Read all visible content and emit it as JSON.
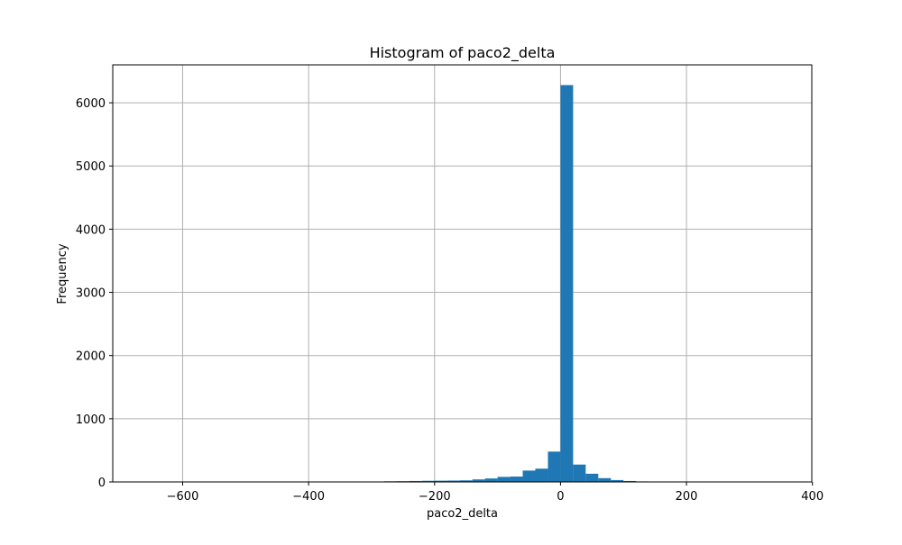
{
  "chart_data": {
    "type": "bar",
    "title": "Histogram of paco2_delta",
    "xlabel": "paco2_delta",
    "ylabel": "Frequency",
    "xlim": [
      -711,
      399
    ],
    "ylim": [
      0,
      6600
    ],
    "xticks": [
      -600,
      -400,
      -200,
      0,
      200,
      400
    ],
    "xtick_labels": [
      "−600",
      "−400",
      "−200",
      "0",
      "200",
      "400"
    ],
    "yticks": [
      0,
      1000,
      2000,
      3000,
      4000,
      5000,
      6000
    ],
    "ytick_labels": [
      "0",
      "1000",
      "2000",
      "3000",
      "4000",
      "5000",
      "6000"
    ],
    "grid": true,
    "bar_color": "#1f77b4",
    "bins": [
      {
        "x0": -660,
        "x1": -640,
        "count": 1
      },
      {
        "x0": -280,
        "x1": -260,
        "count": 10
      },
      {
        "x0": -260,
        "x1": -240,
        "count": 12
      },
      {
        "x0": -240,
        "x1": -220,
        "count": 15
      },
      {
        "x0": -220,
        "x1": -200,
        "count": 18
      },
      {
        "x0": -200,
        "x1": -180,
        "count": 20
      },
      {
        "x0": -180,
        "x1": -160,
        "count": 22
      },
      {
        "x0": -160,
        "x1": -140,
        "count": 25
      },
      {
        "x0": -140,
        "x1": -120,
        "count": 40
      },
      {
        "x0": -120,
        "x1": -100,
        "count": 55
      },
      {
        "x0": -100,
        "x1": -80,
        "count": 80
      },
      {
        "x0": -80,
        "x1": -60,
        "count": 85
      },
      {
        "x0": -60,
        "x1": -40,
        "count": 180
      },
      {
        "x0": -40,
        "x1": -20,
        "count": 210
      },
      {
        "x0": -20,
        "x1": 0,
        "count": 480
      },
      {
        "x0": 0,
        "x1": 20,
        "count": 6280
      },
      {
        "x0": 20,
        "x1": 40,
        "count": 275
      },
      {
        "x0": 40,
        "x1": 60,
        "count": 130
      },
      {
        "x0": 60,
        "x1": 80,
        "count": 60
      },
      {
        "x0": 80,
        "x1": 100,
        "count": 30
      },
      {
        "x0": 100,
        "x1": 120,
        "count": 15
      },
      {
        "x0": 120,
        "x1": 140,
        "count": 8
      },
      {
        "x0": 140,
        "x1": 160,
        "count": 4
      },
      {
        "x0": 160,
        "x1": 180,
        "count": 2
      },
      {
        "x0": 340,
        "x1": 360,
        "count": 1
      }
    ]
  }
}
